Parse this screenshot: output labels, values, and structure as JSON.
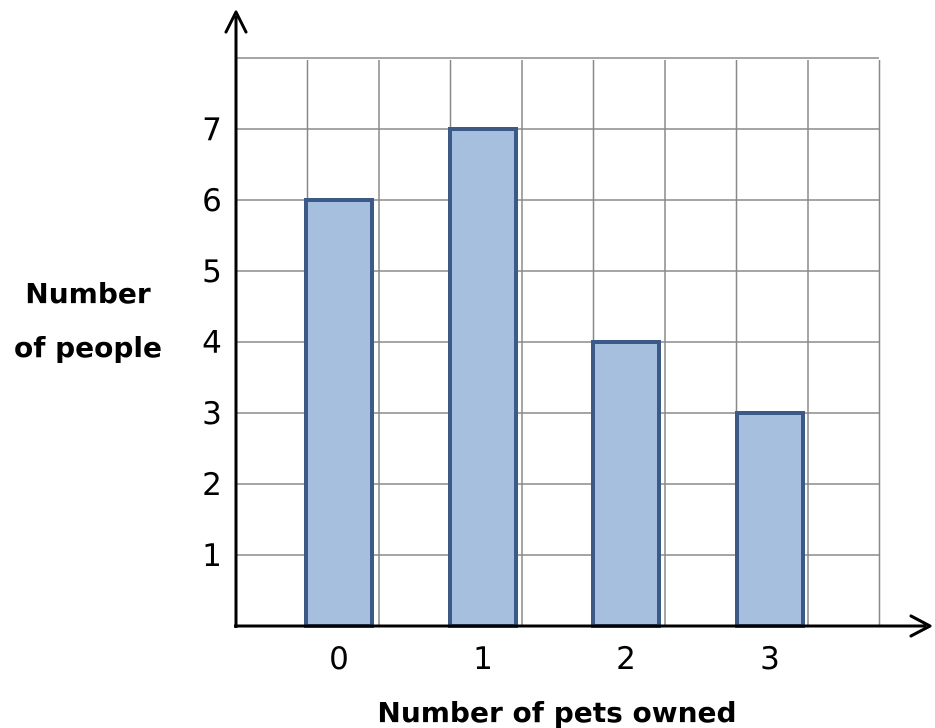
{
  "chart_data": {
    "type": "bar",
    "categories": [
      "0",
      "1",
      "2",
      "3"
    ],
    "values": [
      6,
      7,
      4,
      3
    ],
    "xlabel": "Number of pets owned",
    "ylabel_lines": [
      "Number",
      "of people"
    ],
    "y_ticks": [
      "1",
      "2",
      "3",
      "4",
      "5",
      "6",
      "7"
    ],
    "ylim": [
      0,
      8
    ],
    "grid": true,
    "colors": {
      "bar_fill": "#a7bfdf",
      "bar_stroke": "#3d5a86",
      "grid": "#888888",
      "axis": "#000000"
    }
  }
}
